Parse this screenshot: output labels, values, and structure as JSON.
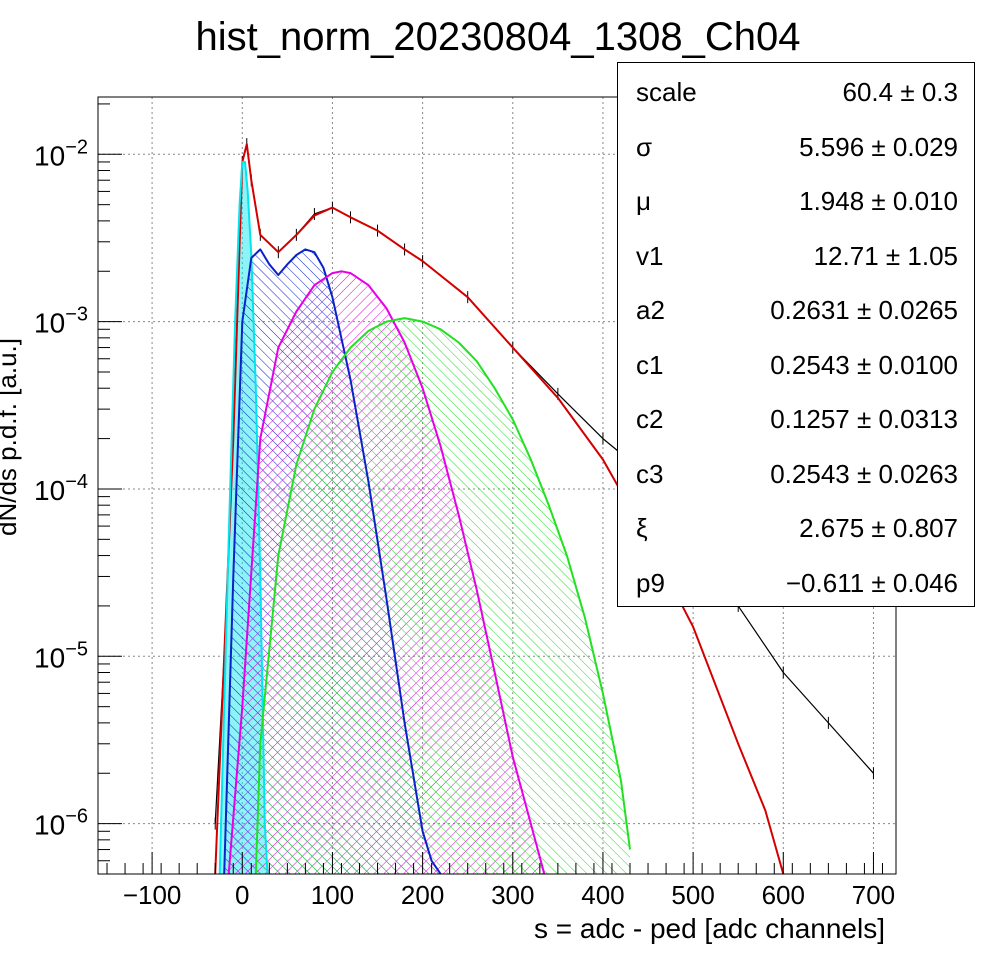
{
  "chart_data": {
    "type": "line",
    "title": "hist_norm_20230804_1308_Ch04",
    "xlabel": "s = adc - ped [adc channels]",
    "ylabel": "dN/ds p.d.f. [a.u.]",
    "xlim": [
      -160,
      725
    ],
    "ylim": [
      5e-07,
      0.022
    ],
    "yscale": "log",
    "grid": true,
    "x_ticks": [
      -100,
      0,
      100,
      200,
      300,
      400,
      500,
      600,
      700
    ],
    "x_tick_labels": [
      "−100",
      "0",
      "100",
      "200",
      "300",
      "400",
      "500",
      "600",
      "700"
    ],
    "y_ticks": [
      {
        "value": 0.01,
        "base": "10",
        "exp": "−2"
      },
      {
        "value": 0.001,
        "base": "10",
        "exp": "−3"
      },
      {
        "value": 0.0001,
        "base": "10",
        "exp": "−4"
      },
      {
        "value": 1e-05,
        "base": "10",
        "exp": "−5"
      },
      {
        "value": 1e-06,
        "base": "10",
        "exp": "−6"
      }
    ],
    "series": [
      {
        "color": "#000000",
        "style": "histogram",
        "x": [
          -30,
          -20,
          -10,
          0,
          5,
          10,
          20,
          40,
          60,
          80,
          100,
          120,
          150,
          180,
          200,
          250,
          300,
          350,
          400,
          450,
          500,
          550,
          600,
          650,
          700
        ],
        "values": [
          1e-06,
          1e-05,
          0.0002,
          0.009,
          0.0115,
          0.007,
          0.0033,
          0.0026,
          0.0033,
          0.0044,
          0.0048,
          0.0042,
          0.0035,
          0.0027,
          0.0023,
          0.0014,
          0.0007,
          0.00037,
          0.0002,
          0.00012,
          5e-05,
          2e-05,
          8e-06,
          4e-06,
          2e-06
        ]
      },
      {
        "color": "#d40000",
        "style": "line",
        "x": [
          -30,
          -20,
          -10,
          0,
          5,
          10,
          20,
          40,
          60,
          80,
          100,
          120,
          150,
          180,
          200,
          250,
          300,
          350,
          400,
          450,
          500,
          550,
          580,
          600
        ],
        "values": [
          5e-07,
          1e-05,
          0.0002,
          0.009,
          0.0115,
          0.007,
          0.0033,
          0.0026,
          0.0033,
          0.0043,
          0.0048,
          0.0042,
          0.0035,
          0.0027,
          0.0023,
          0.0014,
          0.0007,
          0.00035,
          0.00015,
          5e-05,
          1.5e-05,
          3e-06,
          1.2e-06,
          5e-07
        ]
      },
      {
        "color": "#00e5ee",
        "style": "filled",
        "x": [
          -25,
          -15,
          -8,
          -3,
          0,
          3,
          6,
          10,
          15,
          20,
          25,
          28
        ],
        "values": [
          5e-07,
          5e-05,
          0.001,
          0.005,
          0.009,
          0.009,
          0.006,
          0.0025,
          0.0004,
          3e-05,
          1e-06,
          5e-07
        ]
      },
      {
        "color": "#0a23c8",
        "style": "hatched",
        "x": [
          -20,
          -10,
          0,
          10,
          20,
          30,
          40,
          50,
          60,
          70,
          80,
          90,
          100,
          120,
          140,
          160,
          180,
          200,
          210,
          220
        ],
        "values": [
          5e-07,
          3e-05,
          0.001,
          0.0024,
          0.0027,
          0.0022,
          0.0019,
          0.0022,
          0.0025,
          0.0027,
          0.0026,
          0.0021,
          0.0014,
          0.00045,
          0.00011,
          2.2e-05,
          4e-06,
          9e-07,
          6e-07,
          5e-07
        ]
      },
      {
        "color": "#e600e6",
        "style": "hatched",
        "x": [
          -15,
          0,
          20,
          40,
          60,
          80,
          100,
          110,
          120,
          140,
          160,
          180,
          200,
          220,
          240,
          260,
          280,
          300,
          320,
          335
        ],
        "values": [
          5e-07,
          5e-06,
          0.0002,
          0.0007,
          0.00115,
          0.00165,
          0.00195,
          0.002,
          0.00195,
          0.00165,
          0.0012,
          0.00075,
          0.0004,
          0.00018,
          7e-05,
          2.5e-05,
          8e-06,
          2.5e-06,
          1e-06,
          5e-07
        ]
      },
      {
        "color": "#22e022",
        "style": "hatched",
        "x": [
          15,
          20,
          40,
          60,
          80,
          100,
          120,
          140,
          160,
          180,
          200,
          220,
          240,
          260,
          280,
          300,
          320,
          340,
          360,
          380,
          400,
          420,
          430
        ],
        "values": [
          5e-07,
          3e-06,
          4e-05,
          0.00014,
          0.0003,
          0.0005,
          0.0007,
          0.00088,
          0.001,
          0.00105,
          0.001,
          0.0009,
          0.00075,
          0.00058,
          0.0004,
          0.00026,
          0.00015,
          8e-05,
          4e-05,
          1.7e-05,
          6e-06,
          1.8e-06,
          7e-07
        ]
      }
    ]
  },
  "stats": [
    {
      "name": "scale",
      "value": "60.4",
      "error": "0.3"
    },
    {
      "name": "σ",
      "value": "5.596",
      "error": "0.029"
    },
    {
      "name": "μ",
      "value": "1.948",
      "error": "0.010"
    },
    {
      "name": "v1",
      "value": "12.71",
      "error": "1.05"
    },
    {
      "name": "a2",
      "value": "0.2631",
      "error": "0.0265"
    },
    {
      "name": "c1",
      "value": "0.2543",
      "error": "0.0100"
    },
    {
      "name": "c2",
      "value": "0.1257",
      "error": "0.0313"
    },
    {
      "name": "c3",
      "value": "0.2543",
      "error": "0.0263"
    },
    {
      "name": "ξ",
      "value": "2.675",
      "error": "0.807"
    },
    {
      "name": "p9",
      "value": "−0.611",
      "error": "0.046"
    }
  ]
}
